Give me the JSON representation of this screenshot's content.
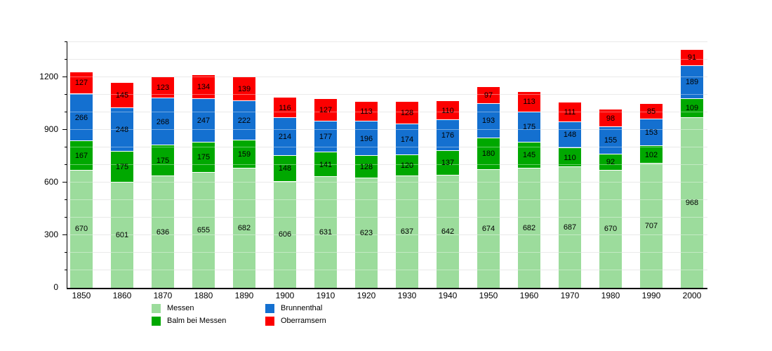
{
  "chart_data": {
    "type": "bar",
    "stacked": true,
    "title": "",
    "xlabel": "",
    "ylabel": "",
    "grid": true,
    "legend_position": "bottom",
    "categories": [
      "1850",
      "1860",
      "1870",
      "1880",
      "1890",
      "1900",
      "1910",
      "1920",
      "1930",
      "1940",
      "1950",
      "1960",
      "1970",
      "1980",
      "1990",
      "2000"
    ],
    "series": [
      {
        "name": "Messen",
        "color": "#9cdc9c",
        "values": [
          670,
          601,
          636,
          655,
          682,
          606,
          631,
          623,
          637,
          642,
          674,
          682,
          687,
          670,
          707,
          968
        ]
      },
      {
        "name": "Balm bei Messen",
        "color": "#00a800",
        "values": [
          167,
          175,
          175,
          175,
          159,
          148,
          141,
          128,
          120,
          137,
          180,
          145,
          110,
          92,
          102,
          109
        ]
      },
      {
        "name": "Brunnenthal",
        "color": "#1470d0",
        "values": [
          266,
          248,
          268,
          247,
          222,
          214,
          177,
          196,
          174,
          176,
          193,
          175,
          148,
          155,
          153,
          189
        ]
      },
      {
        "name": "Oberramsern",
        "color": "#fc0000",
        "values": [
          127,
          145,
          123,
          134,
          139,
          116,
          127,
          113,
          128,
          110,
          97,
          113,
          111,
          98,
          85,
          91
        ]
      }
    ],
    "ylim": [
      0,
      1400
    ],
    "y_major_ticks": [
      0,
      300,
      600,
      900,
      1200
    ],
    "y_minor_step": 100,
    "axis_color": "#000000",
    "gridline_color": "#dcdcdc"
  }
}
